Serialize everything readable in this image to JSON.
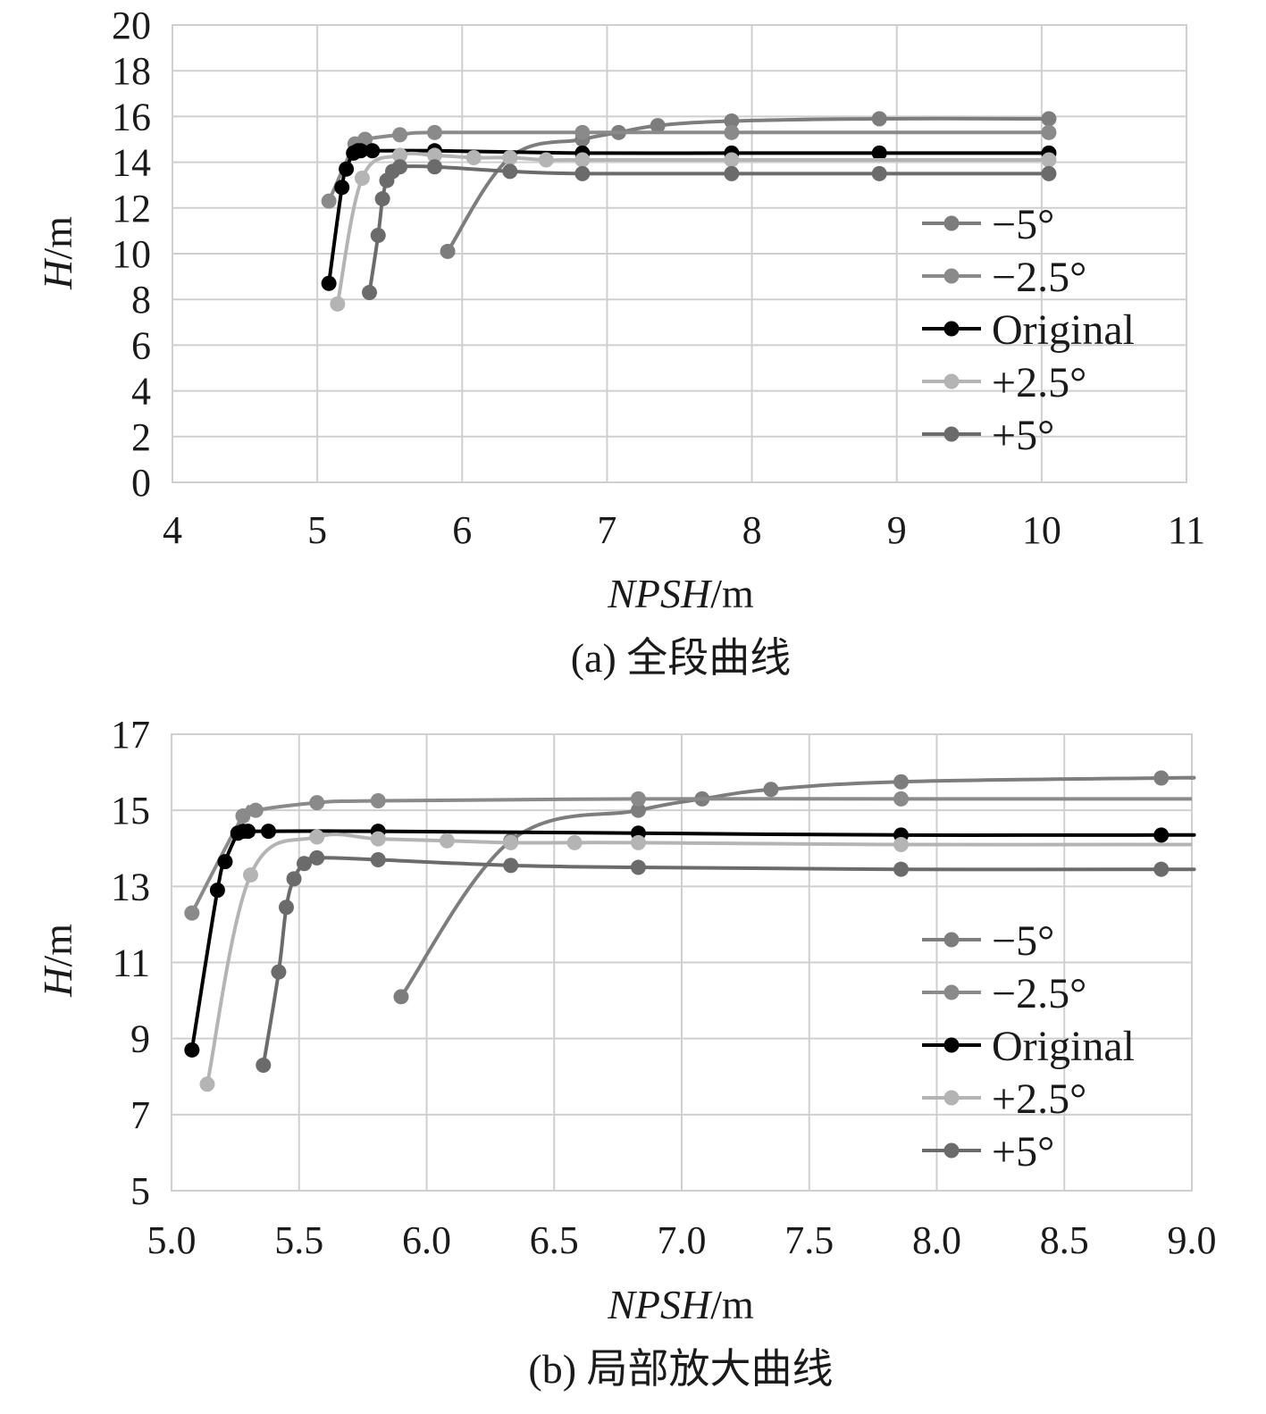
{
  "charts": [
    {
      "caption": "(a) 全段曲线",
      "xlabel_italic": "NPSH",
      "xlabel_unit": "/m",
      "ylabel_italic": "H",
      "ylabel_unit": "/m"
    },
    {
      "caption": "(b) 局部放大曲线",
      "xlabel_italic": "NPSH",
      "xlabel_unit": "/m",
      "ylabel_italic": "H",
      "ylabel_unit": "/m"
    }
  ],
  "legend": [
    "−5°",
    "−2.5°",
    "Original",
    "+2.5°",
    "+5°"
  ],
  "chart_data": [
    {
      "type": "line",
      "xlabel": "NPSH/m",
      "ylabel": "H/m",
      "xlim": [
        4,
        11
      ],
      "ylim": [
        0,
        20
      ],
      "xticks": [
        "4",
        "5",
        "6",
        "7",
        "8",
        "9",
        "10",
        "11"
      ],
      "yticks": [
        "0",
        "2",
        "4",
        "6",
        "8",
        "10",
        "12",
        "14",
        "16",
        "18",
        "20"
      ],
      "grid": true,
      "legend_position": "right",
      "series": [
        {
          "name": "−5°",
          "color": "#7d7d7d",
          "points": [
            [
              5.9,
              10.1
            ],
            [
              6.33,
              14.2
            ],
            [
              6.83,
              15.0
            ],
            [
              7.08,
              15.3
            ],
            [
              7.35,
              15.6
            ],
            [
              7.86,
              15.8
            ],
            [
              8.88,
              15.9
            ],
            [
              10.05,
              15.9
            ]
          ]
        },
        {
          "name": "−2.5°",
          "color": "#8a8a8a",
          "points": [
            [
              5.08,
              12.3
            ],
            [
              5.26,
              14.8
            ],
            [
              5.33,
              15.0
            ],
            [
              5.57,
              15.2
            ],
            [
              5.81,
              15.3
            ],
            [
              6.83,
              15.3
            ],
            [
              7.86,
              15.3
            ],
            [
              10.05,
              15.3
            ]
          ]
        },
        {
          "name": "Original",
          "color": "#000000",
          "points": [
            [
              5.08,
              8.7
            ],
            [
              5.17,
              12.9
            ],
            [
              5.2,
              13.7
            ],
            [
              5.25,
              14.4
            ],
            [
              5.28,
              14.5
            ],
            [
              5.3,
              14.5
            ],
            [
              5.38,
              14.5
            ],
            [
              5.81,
              14.5
            ],
            [
              6.83,
              14.4
            ],
            [
              7.86,
              14.4
            ],
            [
              8.88,
              14.4
            ],
            [
              10.05,
              14.4
            ]
          ]
        },
        {
          "name": "+2.5°",
          "color": "#b4b4b4",
          "points": [
            [
              5.14,
              7.8
            ],
            [
              5.31,
              13.3
            ],
            [
              5.57,
              14.3
            ],
            [
              5.81,
              14.3
            ],
            [
              6.08,
              14.2
            ],
            [
              6.33,
              14.2
            ],
            [
              6.58,
              14.1
            ],
            [
              6.83,
              14.1
            ],
            [
              7.86,
              14.1
            ],
            [
              10.05,
              14.1
            ]
          ]
        },
        {
          "name": "+5°",
          "color": "#6b6b6b",
          "points": [
            [
              5.36,
              8.3
            ],
            [
              5.42,
              10.8
            ],
            [
              5.45,
              12.4
            ],
            [
              5.48,
              13.2
            ],
            [
              5.52,
              13.6
            ],
            [
              5.57,
              13.8
            ],
            [
              5.81,
              13.8
            ],
            [
              6.33,
              13.6
            ],
            [
              6.83,
              13.5
            ],
            [
              7.86,
              13.5
            ],
            [
              8.88,
              13.5
            ],
            [
              10.05,
              13.5
            ]
          ]
        }
      ]
    },
    {
      "type": "line",
      "xlabel": "NPSH/m",
      "ylabel": "H/m",
      "xlim": [
        5.0,
        9.0
      ],
      "ylim": [
        5,
        17
      ],
      "xticks": [
        "5.0",
        "5.5",
        "6.0",
        "6.5",
        "7.0",
        "7.5",
        "8.0",
        "8.5",
        "9.0"
      ],
      "yticks": [
        "5",
        "7",
        "9",
        "11",
        "13",
        "15",
        "17"
      ],
      "grid": true,
      "legend_position": "right",
      "series": [
        {
          "name": "−5°",
          "color": "#7d7d7d",
          "points": [
            [
              5.9,
              10.1
            ],
            [
              6.33,
              14.2
            ],
            [
              6.83,
              15.0
            ],
            [
              7.08,
              15.3
            ],
            [
              7.35,
              15.55
            ],
            [
              7.86,
              15.75
            ],
            [
              8.88,
              15.85
            ],
            [
              9.0,
              15.85
            ]
          ]
        },
        {
          "name": "−2.5°",
          "color": "#8a8a8a",
          "points": [
            [
              5.08,
              12.3
            ],
            [
              5.28,
              14.85
            ],
            [
              5.33,
              15.0
            ],
            [
              5.57,
              15.2
            ],
            [
              5.81,
              15.25
            ],
            [
              6.83,
              15.3
            ],
            [
              7.86,
              15.3
            ],
            [
              9.0,
              15.3
            ]
          ]
        },
        {
          "name": "Original",
          "color": "#000000",
          "points": [
            [
              5.08,
              8.7
            ],
            [
              5.18,
              12.9
            ],
            [
              5.21,
              13.65
            ],
            [
              5.26,
              14.4
            ],
            [
              5.28,
              14.45
            ],
            [
              5.3,
              14.45
            ],
            [
              5.38,
              14.45
            ],
            [
              5.81,
              14.45
            ],
            [
              6.83,
              14.4
            ],
            [
              7.86,
              14.35
            ],
            [
              8.88,
              14.35
            ],
            [
              9.0,
              14.35
            ]
          ]
        },
        {
          "name": "+2.5°",
          "color": "#b4b4b4",
          "points": [
            [
              5.14,
              7.8
            ],
            [
              5.31,
              13.3
            ],
            [
              5.57,
              14.3
            ],
            [
              5.81,
              14.25
            ],
            [
              6.08,
              14.2
            ],
            [
              6.33,
              14.15
            ],
            [
              6.58,
              14.15
            ],
            [
              6.83,
              14.15
            ],
            [
              7.86,
              14.1
            ],
            [
              9.0,
              14.1
            ]
          ]
        },
        {
          "name": "+5°",
          "color": "#6b6b6b",
          "points": [
            [
              5.36,
              8.3
            ],
            [
              5.42,
              10.75
            ],
            [
              5.45,
              12.45
            ],
            [
              5.48,
              13.2
            ],
            [
              5.52,
              13.6
            ],
            [
              5.57,
              13.75
            ],
            [
              5.81,
              13.7
            ],
            [
              6.33,
              13.55
            ],
            [
              6.83,
              13.5
            ],
            [
              7.86,
              13.45
            ],
            [
              8.88,
              13.45
            ],
            [
              9.0,
              13.45
            ]
          ]
        }
      ]
    }
  ]
}
